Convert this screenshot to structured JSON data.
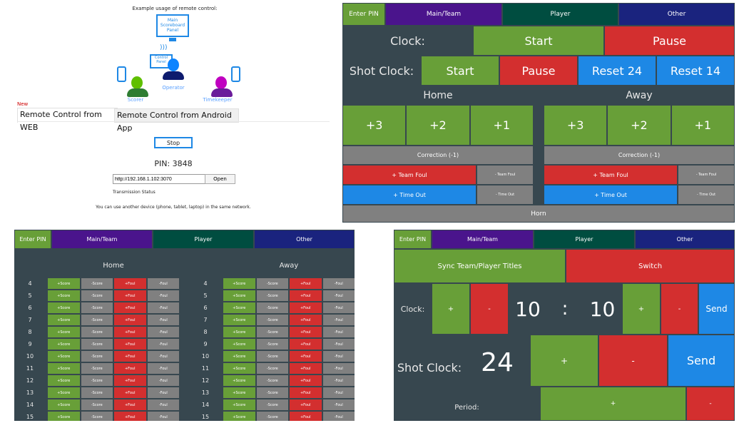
{
  "web_panel": {
    "example_title": "Example usage of remote control:",
    "main_panel_label": "Main Scoreboard Panel",
    "control_panel_label": "Control Panel",
    "operator": "Operator",
    "scorer": "Scorer",
    "timekeeper": "Timekeeper",
    "new_badge": "New",
    "tabs": [
      "Remote Control from WEB",
      "Remote Control from Android App"
    ],
    "stop": "Stop",
    "pin": "PIN: 3848",
    "url": "http://192.168.1.102:3070",
    "open": "Open",
    "status": "Transmission Status",
    "hint": "You can use another device (phone, tablet, laptop) in the same network."
  },
  "nav": {
    "enter_pin": "Enter PIN",
    "main_team": "Main/Team",
    "player": "Player",
    "other": "Other"
  },
  "main": {
    "clock_label": "Clock:",
    "start": "Start",
    "pause": "Pause",
    "shot_label": "Shot Clock:",
    "reset24": "Reset 24",
    "reset14": "Reset 14",
    "home": "Home",
    "away": "Away",
    "p3": "+3",
    "p2": "+2",
    "p1": "+1",
    "correction": "Correction (-1)",
    "team_foul_plus": "+ Team Foul",
    "team_foul_minus": "- Team Foul",
    "timeout_plus": "+ Time Out",
    "timeout_minus": "- Time Out",
    "horn": "Horn"
  },
  "player": {
    "home": "Home",
    "away": "Away",
    "numbers": [
      "4",
      "5",
      "6",
      "7",
      "8",
      "9",
      "10",
      "11",
      "12",
      "13",
      "14",
      "15"
    ],
    "plus_score": "+Score",
    "minus_score": "-Score",
    "plus_foul": "+Foul",
    "minus_foul": "-Foul"
  },
  "other": {
    "sync": "Sync Team/Player Titles",
    "switch": "Switch",
    "clock_label": "Clock:",
    "plus": "+",
    "minus": "-",
    "minutes": "10",
    "colon": ":",
    "seconds": "10",
    "send": "Send",
    "shot_label": "Shot Clock:",
    "shot_value": "24",
    "period_label": "Period:"
  },
  "colors": {
    "green": "#689f38",
    "red": "#d32f2f",
    "blue": "#1e88e5",
    "gray": "#808080",
    "dark": "#37474f"
  }
}
